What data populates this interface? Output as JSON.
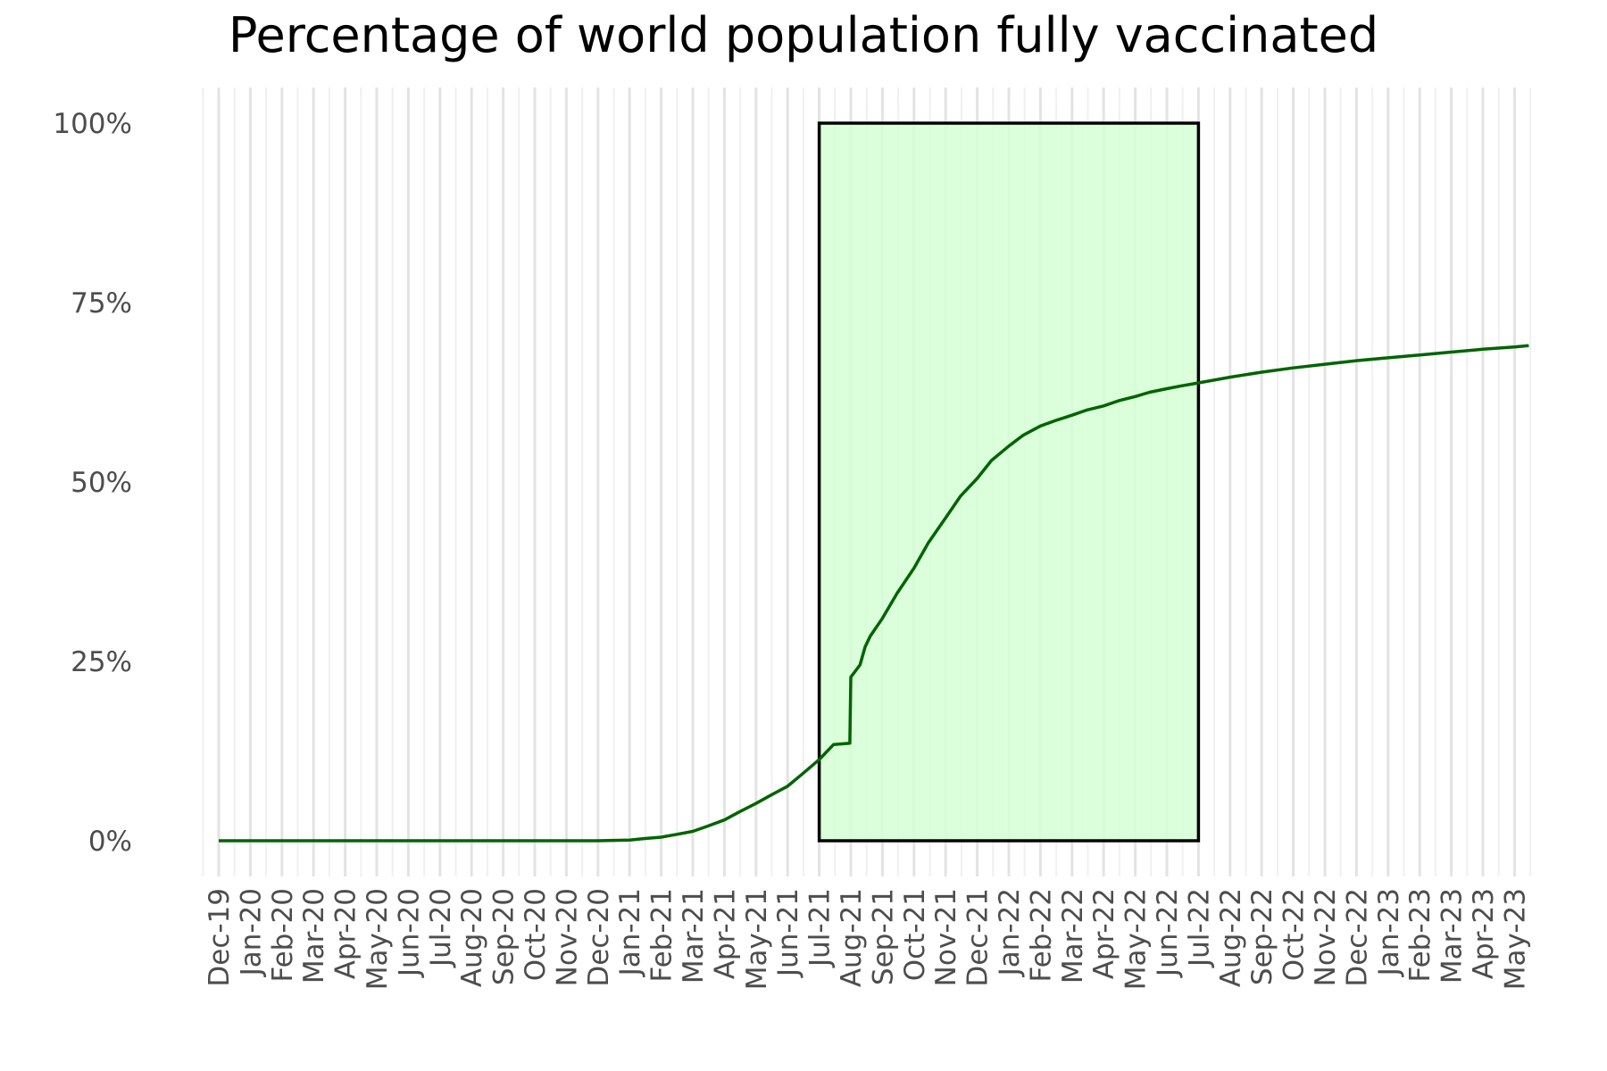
{
  "chart_data": {
    "type": "line",
    "title": "Percentage of world population fully vaccinated",
    "xlabel": "",
    "ylabel": "",
    "y_ticks": [
      "0%",
      "25%",
      "50%",
      "75%",
      "100%"
    ],
    "ylim": [
      0,
      100
    ],
    "x_ticks": [
      "Dec-19",
      "Jan-20",
      "Feb-20",
      "Mar-20",
      "Apr-20",
      "May-20",
      "Jun-20",
      "Jul-20",
      "Aug-20",
      "Sep-20",
      "Oct-20",
      "Nov-20",
      "Dec-20",
      "Jan-21",
      "Feb-21",
      "Mar-21",
      "Apr-21",
      "May-21",
      "Jun-21",
      "Jul-21",
      "Aug-21",
      "Sep-21",
      "Oct-21",
      "Nov-21",
      "Dec-21",
      "Jan-22",
      "Feb-22",
      "Mar-22",
      "Apr-22",
      "May-22",
      "Jun-22",
      "Jul-22",
      "Aug-22",
      "Sep-22",
      "Oct-22",
      "Nov-22",
      "Dec-22",
      "Jan-23",
      "Feb-23",
      "Mar-23",
      "Apr-23",
      "May-23"
    ],
    "grid": true,
    "line_color": "#006400",
    "highlight": {
      "start": "2021-07-01",
      "end": "2022-07-01",
      "y_range": [
        0,
        100
      ],
      "fill_color": "#d5ffd5",
      "border_color": "#000000"
    },
    "series": [
      {
        "x": [
          "2019-12-01",
          "2020-01-01",
          "2020-03-01",
          "2020-06-01",
          "2020-09-01",
          "2020-12-01",
          "2021-01-01",
          "2021-01-15",
          "2021-02-01",
          "2021-02-15",
          "2021-03-01",
          "2021-03-15",
          "2021-04-01",
          "2021-04-15",
          "2021-05-01",
          "2021-05-15",
          "2021-06-01",
          "2021-06-15",
          "2021-07-01",
          "2021-07-15",
          "2021-07-31",
          "2021-08-01",
          "2021-08-10",
          "2021-08-15",
          "2021-08-20",
          "2021-09-01",
          "2021-09-15",
          "2021-10-01",
          "2021-10-15",
          "2021-11-01",
          "2021-11-15",
          "2021-12-01",
          "2021-12-15",
          "2022-01-01",
          "2022-01-15",
          "2022-02-01",
          "2022-02-15",
          "2022-03-01",
          "2022-03-15",
          "2022-04-01",
          "2022-04-15",
          "2022-05-01",
          "2022-05-15",
          "2022-06-01",
          "2022-06-15",
          "2022-07-01",
          "2022-08-01",
          "2022-09-01",
          "2022-10-01",
          "2022-11-01",
          "2022-12-01",
          "2023-01-01",
          "2023-02-01",
          "2023-03-01",
          "2023-04-01",
          "2023-05-01",
          "2023-05-15"
        ],
        "y": [
          0,
          0,
          0,
          0,
          0,
          0,
          0.1,
          0.3,
          0.5,
          0.9,
          1.3,
          2.0,
          2.9,
          4.0,
          5.2,
          6.3,
          7.6,
          9.3,
          11.3,
          13.4,
          13.6,
          22.8,
          24.5,
          27.0,
          28.5,
          31.0,
          34.5,
          38.0,
          41.5,
          45.0,
          48.0,
          50.5,
          53.0,
          55.0,
          56.5,
          57.8,
          58.6,
          59.3,
          60.0,
          60.6,
          61.3,
          61.9,
          62.5,
          63.0,
          63.4,
          63.8,
          64.6,
          65.3,
          65.9,
          66.4,
          66.9,
          67.3,
          67.7,
          68.1,
          68.5,
          68.8,
          69.0
        ]
      }
    ]
  }
}
